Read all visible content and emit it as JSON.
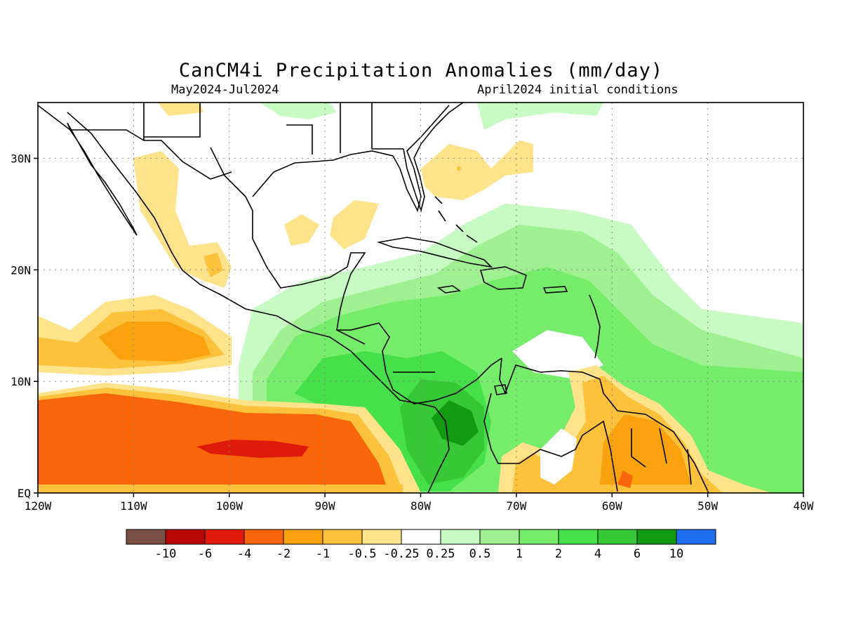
{
  "title": "CanCM4i Precipitation Anomalies (mm/day)",
  "period": "May2024-Jul2024",
  "initial_conditions": "April2024 initial conditions",
  "lon_axis": {
    "ticks": [
      -120,
      -110,
      -100,
      -90,
      -80,
      -70,
      -60,
      -50,
      -40
    ],
    "labels": [
      "120W",
      "110W",
      "100W",
      "90W",
      "80W",
      "70W",
      "60W",
      "50W",
      "40W"
    ],
    "range": [
      -120,
      -40
    ]
  },
  "lat_axis": {
    "ticks": [
      0,
      10,
      20,
      30
    ],
    "labels": [
      "EQ",
      "10N",
      "20N",
      "30N"
    ],
    "range": [
      0,
      35
    ]
  },
  "grid": "dotted",
  "colorbar": {
    "colors": [
      "#7a4f45",
      "#b80606",
      "#df1a0a",
      "#f8650a",
      "#f9a20e",
      "#fdc13c",
      "#fee38a",
      "#ffffff",
      "#c8fbc3",
      "#9ef091",
      "#75ed6b",
      "#46e04a",
      "#37c838",
      "#129a13",
      "#1f6ef0"
    ],
    "labels": [
      "-10",
      "-6",
      "-4",
      "-2",
      "-1",
      "-0.5",
      "-0.25",
      "0.25",
      "0.5",
      "1",
      "2",
      "4",
      "6",
      "10"
    ]
  },
  "regions": [
    {
      "name": "east-pacific-dry",
      "level": "-2"
    },
    {
      "name": "east-pacific-core-dry",
      "level": "-4"
    },
    {
      "name": "mexico-pacific-coast-dry",
      "level": "-1"
    },
    {
      "name": "caribbean-wet",
      "level": "1"
    },
    {
      "name": "panama-colombia-wet",
      "level": "4"
    },
    {
      "name": "guianas-dry",
      "level": "-1"
    },
    {
      "name": "gulf-of-mexico-dry",
      "level": "-0.25"
    },
    {
      "name": "atlantic-subtropical-dry",
      "level": "-0.25"
    }
  ]
}
